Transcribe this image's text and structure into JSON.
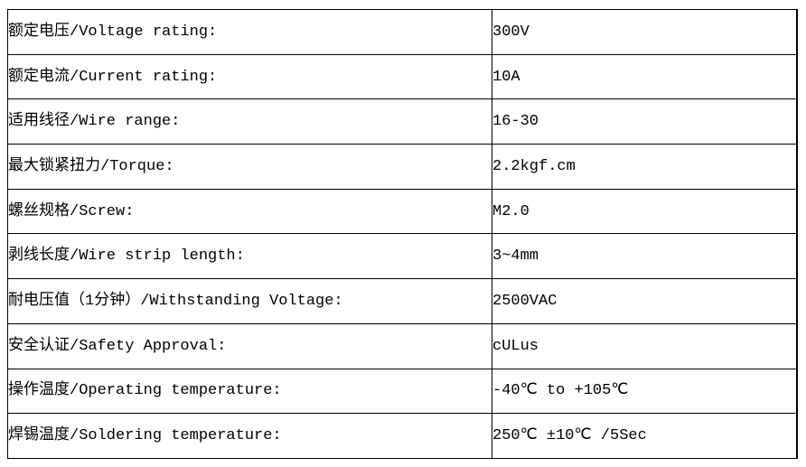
{
  "table": {
    "name": "product-specification-table",
    "colors": {
      "border": "#000000",
      "text": "#000000",
      "background": "#ffffff"
    },
    "rows": [
      {
        "label": "额定电压/Voltage rating:",
        "value": "300V"
      },
      {
        "label": "额定电流/Current rating:",
        "value": "10A"
      },
      {
        "label": "适用线径/Wire range:",
        "value": "16-30"
      },
      {
        "label": "最大锁紧扭力/Torque:",
        "value": "2.2kgf.cm"
      },
      {
        "label": "螺丝规格/Screw:",
        "value": "M2.0"
      },
      {
        "label": "剥线长度/Wire strip length:",
        "value": "3~4mm"
      },
      {
        "label": "耐电压值（1分钟）/Withstanding Voltage:",
        "value": "2500VAC"
      },
      {
        "label": "安全认证/Safety Approval:",
        "value": "cULus"
      },
      {
        "label": "操作温度/Operating temperature:",
        "value": "-40℃ to +105℃"
      },
      {
        "label": "焊锡温度/Soldering temperature:",
        "value": "250℃ ±10℃ /5Sec"
      }
    ]
  }
}
